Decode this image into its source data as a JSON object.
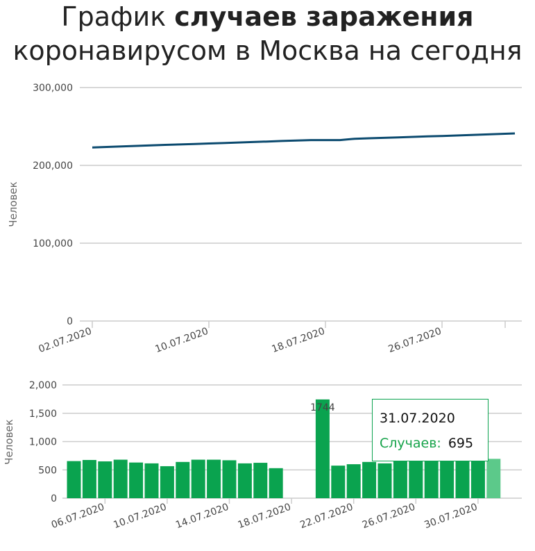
{
  "title": {
    "part1": "График ",
    "part2": "случаев заражения",
    "part3": "коронавирусом в Москва на сегодня"
  },
  "colors": {
    "line": "#0b4a6f",
    "bar": "#0aa34f",
    "bar_highlight": "#5cc98a",
    "grid": "#cccccc",
    "tooltip_border": "#0aa34f",
    "tooltip_label": "#16a34a"
  },
  "tooltip": {
    "date": "31.07.2020",
    "label": "Случаев:",
    "value": "695"
  },
  "chart_data": [
    {
      "type": "line",
      "ylabel": "Человек",
      "ylim": [
        0,
        300000
      ],
      "yticks": [
        "0",
        "100,000",
        "200,000",
        "300,000"
      ],
      "yticks_values": [
        0,
        100000,
        200000,
        300000
      ],
      "xticks": [
        "02.07.2020",
        "10.07.2020",
        "18.07.2020",
        "26.07.2020"
      ],
      "grid": true,
      "x": [
        "02.07.2020",
        "03.07.2020",
        "04.07.2020",
        "05.07.2020",
        "06.07.2020",
        "07.07.2020",
        "08.07.2020",
        "09.07.2020",
        "10.07.2020",
        "11.07.2020",
        "12.07.2020",
        "13.07.2020",
        "14.07.2020",
        "15.07.2020",
        "16.07.2020",
        "17.07.2020",
        "18.07.2020",
        "19.07.2020",
        "20.07.2020",
        "21.07.2020",
        "22.07.2020",
        "23.07.2020",
        "24.07.2020",
        "25.07.2020",
        "26.07.2020",
        "27.07.2020",
        "28.07.2020",
        "29.07.2020",
        "30.07.2020",
        "31.07.2020"
      ],
      "values": [
        223000,
        223700,
        224400,
        225000,
        225700,
        226300,
        226900,
        227500,
        228100,
        228700,
        229400,
        230000,
        230600,
        231300,
        231900,
        232500,
        232500,
        232500,
        234200,
        234800,
        235400,
        236000,
        236600,
        237200,
        237800,
        238400,
        239100,
        239700,
        240400,
        241100
      ]
    },
    {
      "type": "bar",
      "ylabel": "Человек",
      "ylim": [
        0,
        2000
      ],
      "yticks": [
        "0",
        "500",
        "1,000",
        "1,500",
        "2,000"
      ],
      "yticks_values": [
        0,
        500,
        1000,
        1500,
        2000
      ],
      "xticks": [
        "06.07.2020",
        "10.07.2020",
        "14.07.2020",
        "18.07.2020",
        "22.07.2020",
        "26.07.2020",
        "30.07.2020"
      ],
      "grid": true,
      "categories": [
        "04.07.2020",
        "05.07.2020",
        "06.07.2020",
        "07.07.2020",
        "08.07.2020",
        "09.07.2020",
        "10.07.2020",
        "11.07.2020",
        "12.07.2020",
        "13.07.2020",
        "14.07.2020",
        "15.07.2020",
        "16.07.2020",
        "17.07.2020",
        "18.07.2020",
        "19.07.2020",
        "20.07.2020",
        "21.07.2020",
        "22.07.2020",
        "23.07.2020",
        "24.07.2020",
        "25.07.2020",
        "26.07.2020",
        "27.07.2020",
        "28.07.2020",
        "29.07.2020",
        "30.07.2020",
        "31.07.2020"
      ],
      "values": [
        655,
        675,
        650,
        680,
        630,
        615,
        565,
        640,
        680,
        680,
        670,
        615,
        625,
        530,
        0,
        0,
        1744,
        575,
        600,
        640,
        615,
        660,
        665,
        670,
        670,
        665,
        670,
        695
      ],
      "data_labels": [
        {
          "category": "20.07.2020",
          "text": "1744"
        }
      ],
      "highlight": "31.07.2020"
    }
  ]
}
